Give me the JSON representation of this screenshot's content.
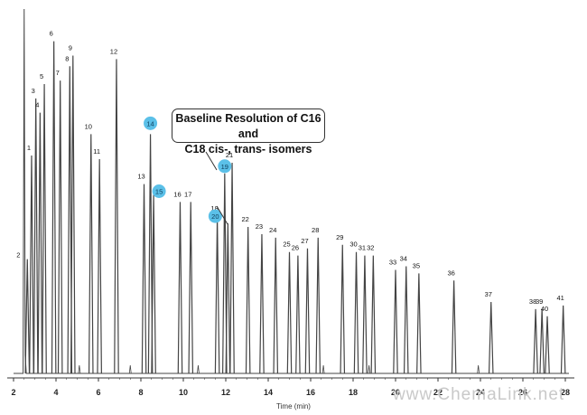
{
  "chart_data": {
    "type": "line",
    "xlabel": "Time (min)",
    "xlim": [
      2,
      28
    ],
    "x_ticks": [
      2,
      4,
      6,
      8,
      10,
      12,
      14,
      16,
      18,
      20,
      22,
      24,
      26,
      28
    ],
    "y_axis_label_visible": false,
    "grid": false,
    "peaks": [
      {
        "label": "1",
        "x": 2.85,
        "height": 0.61
      },
      {
        "label": "2",
        "x": 2.65,
        "height": 0.32
      },
      {
        "label": "3",
        "x": 3.05,
        "height": 0.77
      },
      {
        "label": "4",
        "x": 3.25,
        "height": 0.73
      },
      {
        "label": "5",
        "x": 3.45,
        "height": 0.81
      },
      {
        "label": "6",
        "x": 3.9,
        "height": 0.93
      },
      {
        "label": "7",
        "x": 4.2,
        "height": 0.82
      },
      {
        "label": "8",
        "x": 4.65,
        "height": 0.86
      },
      {
        "label": "9",
        "x": 4.8,
        "height": 0.89
      },
      {
        "label": "10",
        "x": 5.65,
        "height": 0.67
      },
      {
        "label": "11",
        "x": 6.05,
        "height": 0.6
      },
      {
        "label": "12",
        "x": 6.85,
        "height": 0.88
      },
      {
        "label": "13",
        "x": 8.15,
        "height": 0.53
      },
      {
        "label": "14",
        "x": 8.45,
        "height": 0.67,
        "highlight": true
      },
      {
        "label": "15",
        "x": 8.6,
        "height": 0.5,
        "highlight": true
      },
      {
        "label": "16",
        "x": 9.85,
        "height": 0.48
      },
      {
        "label": "17",
        "x": 10.35,
        "height": 0.48
      },
      {
        "label": "18",
        "x": 11.6,
        "height": 0.44
      },
      {
        "label": "19",
        "x": 11.95,
        "height": 0.56,
        "highlight": true
      },
      {
        "label": "20",
        "x": 12.1,
        "height": 0.42,
        "highlight": true
      },
      {
        "label": "21",
        "x": 12.3,
        "height": 0.59
      },
      {
        "label": "22",
        "x": 13.05,
        "height": 0.41
      },
      {
        "label": "23",
        "x": 13.7,
        "height": 0.39
      },
      {
        "label": "24",
        "x": 14.35,
        "height": 0.38
      },
      {
        "label": "25",
        "x": 15.0,
        "height": 0.34
      },
      {
        "label": "26",
        "x": 15.4,
        "height": 0.33
      },
      {
        "label": "27",
        "x": 15.85,
        "height": 0.35
      },
      {
        "label": "28",
        "x": 16.35,
        "height": 0.38
      },
      {
        "label": "29",
        "x": 17.5,
        "height": 0.36
      },
      {
        "label": "30",
        "x": 18.15,
        "height": 0.34
      },
      {
        "label": "31",
        "x": 18.55,
        "height": 0.33
      },
      {
        "label": "32",
        "x": 18.95,
        "height": 0.33
      },
      {
        "label": "33",
        "x": 20.0,
        "height": 0.29
      },
      {
        "label": "34",
        "x": 20.5,
        "height": 0.3
      },
      {
        "label": "35",
        "x": 21.1,
        "height": 0.28
      },
      {
        "label": "36",
        "x": 22.75,
        "height": 0.26
      },
      {
        "label": "37",
        "x": 24.5,
        "height": 0.2
      },
      {
        "label": "38",
        "x": 26.6,
        "height": 0.18
      },
      {
        "label": "39",
        "x": 26.9,
        "height": 0.18
      },
      {
        "label": "40",
        "x": 27.15,
        "height": 0.16
      },
      {
        "label": "41",
        "x": 27.9,
        "height": 0.19
      }
    ],
    "annotation": "Baseline Resolution of C16 and C18 cis-, trans- isomers",
    "colors": {
      "trace": "#444444",
      "highlight_marker": "#5bc0e8",
      "axis": "#333333"
    }
  },
  "annotation": {
    "line1": "Baseline Resolution of C16 and",
    "line2": "C18 cis-, trans- isomers"
  },
  "watermark": "www.ChemaLink.net"
}
